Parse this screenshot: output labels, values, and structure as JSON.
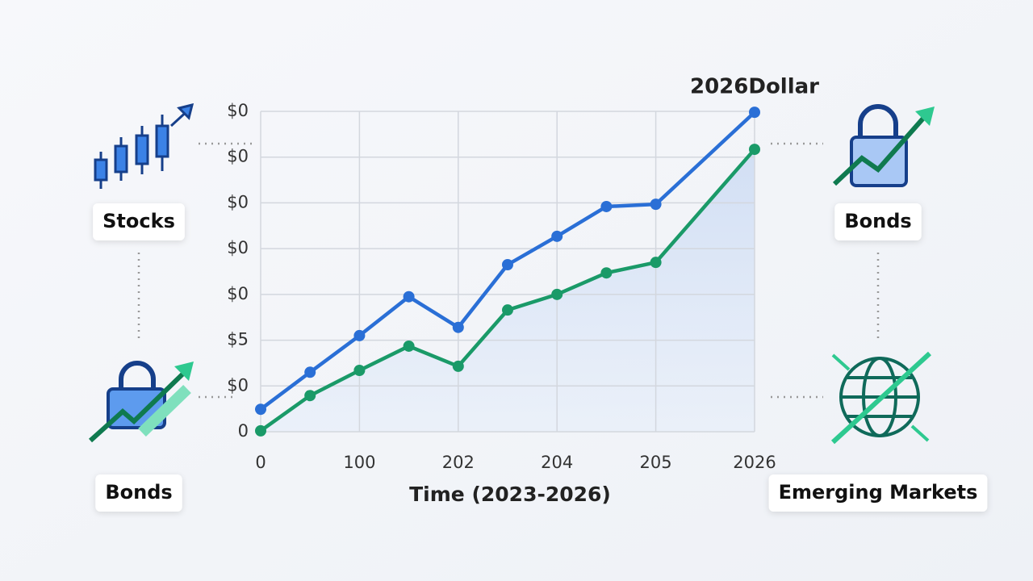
{
  "chart_data": {
    "type": "line",
    "title": "2026Dollar",
    "xlabel": "Time (2023-2026)",
    "x": [
      0,
      1,
      2,
      3,
      4,
      5,
      6,
      7,
      8,
      10
    ],
    "xlim": [
      0,
      10
    ],
    "xticks": [
      0,
      {
        "value": 2,
        "label": "100"
      },
      {
        "value": 4,
        "label": "202"
      },
      {
        "value": 6,
        "label": "204"
      },
      {
        "value": 8,
        "label": "205"
      },
      {
        "value": 10,
        "label": "2026"
      }
    ],
    "ylim": [
      0,
      7
    ],
    "yticks": [
      0,
      {
        "value": 1,
        "label": "$0"
      },
      {
        "value": 2,
        "label": "$5"
      },
      {
        "value": 3,
        "label": "$0"
      },
      {
        "value": 4,
        "label": "$0"
      },
      {
        "value": 5,
        "label": "$0"
      },
      {
        "value": 6,
        "label": "$0"
      },
      {
        "value": 7,
        "label": "$0"
      }
    ],
    "grid": true,
    "series": [
      {
        "color": "#2a6fd6",
        "values": [
          0.49,
          1.3,
          2.1,
          2.95,
          2.28,
          3.65,
          4.27,
          4.92,
          4.97,
          6.98
        ]
      },
      {
        "color": "#1a9a68",
        "values": [
          0.02,
          0.79,
          1.34,
          1.87,
          1.43,
          2.66,
          3.0,
          3.47,
          3.7,
          6.17
        ]
      }
    ]
  },
  "labels": [
    "Stocks",
    "Bonds",
    "Bonds",
    "Emerging Markets"
  ]
}
